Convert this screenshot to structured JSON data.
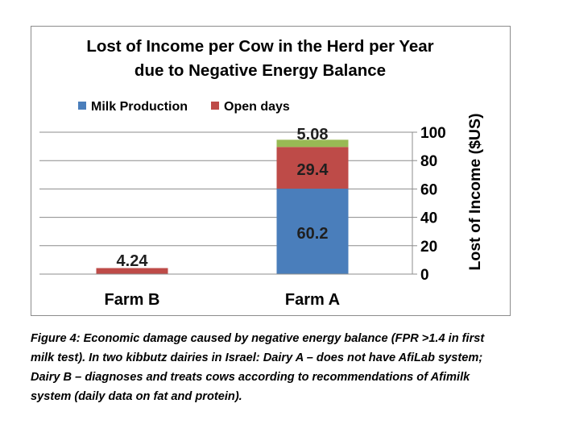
{
  "chart_data": {
    "type": "bar",
    "stacked": true,
    "orientation": "vertical",
    "title_lines": [
      "Lost of Income per Cow in the Herd per Year",
      "due to Negative Energy Balance"
    ],
    "categories": [
      "Farm B",
      "Farm A"
    ],
    "series": [
      {
        "name": "Milk Production",
        "color": "#4a7ebb",
        "values": [
          0,
          60.2
        ],
        "labels": [
          "",
          "60.2"
        ]
      },
      {
        "name": "Open days",
        "color": "#be4b48",
        "values": [
          4.24,
          29.4
        ],
        "labels": [
          "4.24",
          "29.4"
        ]
      },
      {
        "color": "#98b954",
        "values": [
          0,
          5.08
        ],
        "labels": [
          "",
          "5.08"
        ]
      }
    ],
    "ylabel": "Lost of Income ($US)",
    "ylim": [
      0,
      100
    ],
    "yticks": [
      0,
      20,
      40,
      60,
      80,
      100
    ],
    "y_axis_side": "right",
    "legend_position": "top",
    "grid": true
  },
  "caption_lines": [
    "Figure 4: Economic damage caused by negative energy balance (FPR >1.4 in first",
    "milk test). In two kibbutz dairies in Israel: Dairy A – does not have AfiLab system;",
    "Dairy B – diagnoses and treats cows according to recommendations of Afimilk",
    "system (daily data on fat and protein)."
  ]
}
